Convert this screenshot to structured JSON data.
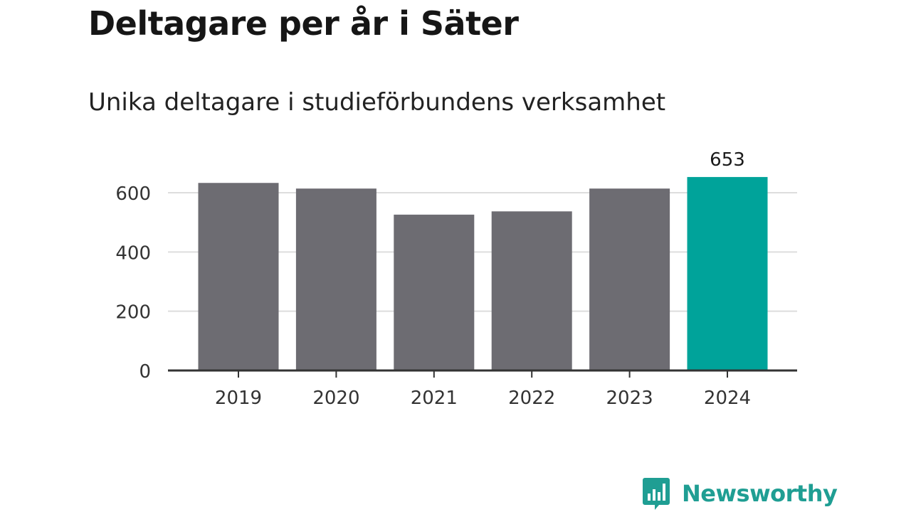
{
  "header": {
    "title": "Deltagare per år i Säter",
    "subtitle": "Unika deltagare i studieförbundens verksamhet"
  },
  "branding": {
    "logo_text": "Newsworthy",
    "logo_color": "#1f9e93"
  },
  "chart_data": {
    "type": "bar",
    "categories": [
      "2019",
      "2020",
      "2021",
      "2022",
      "2023",
      "2024"
    ],
    "values": [
      633,
      614,
      526,
      537,
      614,
      653
    ],
    "ylim": [
      0,
      660
    ],
    "yticks": [
      "0",
      "200",
      "400",
      "600"
    ],
    "grid": true,
    "colors": {
      "default": "#6d6c72",
      "highlight": "#00a39a",
      "grid": "#dddddd",
      "axis": "#333333"
    },
    "highlight_index": 5,
    "data_labels": [
      {
        "index": 5,
        "text": "653"
      }
    ]
  }
}
